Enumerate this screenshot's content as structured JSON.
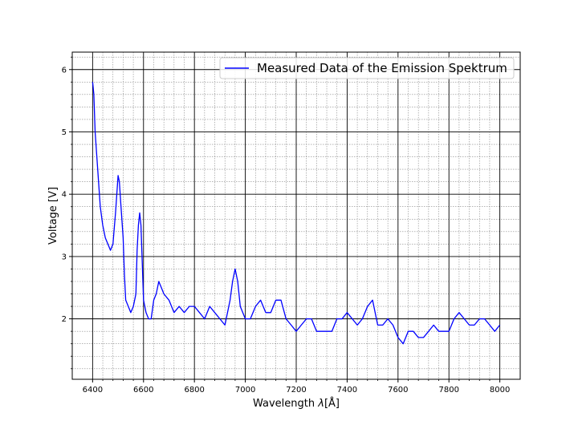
{
  "chart_data": {
    "type": "line",
    "title": "",
    "xlabel": "Wavelength $\\lambda$[Å]",
    "xlabel_prefix": "Wavelength ",
    "xlabel_symbol": "λ",
    "xlabel_unit": "[Å]",
    "ylabel": "Voltage [V]",
    "xlim": [
      6320,
      8080
    ],
    "ylim": [
      1.03,
      6.28
    ],
    "x_ticks": [
      6400,
      6600,
      6800,
      7000,
      7200,
      7400,
      7600,
      7800,
      8000
    ],
    "x_tick_labels": [
      "6400",
      "6600",
      "6800",
      "7000",
      "7200",
      "7400",
      "7600",
      "7800",
      "8000"
    ],
    "y_ticks": [
      2,
      3,
      4,
      5,
      6
    ],
    "y_tick_labels": [
      "2",
      "3",
      "4",
      "5",
      "6"
    ],
    "grid": true,
    "minor_grid": true,
    "legend_position": "top-right",
    "series": [
      {
        "name": "Measured Data of the Emission Spektrum",
        "color": "#0000ff",
        "x": [
          6400,
          6405,
          6410,
          6415,
          6420,
          6425,
          6430,
          6440,
          6450,
          6460,
          6470,
          6480,
          6490,
          6495,
          6500,
          6505,
          6510,
          6515,
          6520,
          6525,
          6530,
          6540,
          6550,
          6560,
          6570,
          6575,
          6580,
          6585,
          6590,
          6595,
          6600,
          6610,
          6620,
          6630,
          6640,
          6650,
          6660,
          6670,
          6680,
          6700,
          6720,
          6740,
          6760,
          6780,
          6800,
          6820,
          6840,
          6860,
          6880,
          6900,
          6920,
          6940,
          6950,
          6960,
          6970,
          6980,
          7000,
          7020,
          7040,
          7060,
          7080,
          7100,
          7120,
          7140,
          7160,
          7180,
          7200,
          7220,
          7240,
          7260,
          7280,
          7300,
          7320,
          7340,
          7360,
          7380,
          7400,
          7420,
          7440,
          7460,
          7480,
          7500,
          7520,
          7540,
          7560,
          7580,
          7600,
          7620,
          7640,
          7660,
          7680,
          7700,
          7720,
          7740,
          7760,
          7780,
          7800,
          7820,
          7840,
          7860,
          7880,
          7900,
          7920,
          7940,
          7960,
          7980,
          8000
        ],
        "y": [
          5.8,
          5.6,
          5.0,
          4.7,
          4.4,
          4.1,
          3.8,
          3.5,
          3.3,
          3.2,
          3.1,
          3.2,
          3.7,
          4.0,
          4.3,
          4.2,
          3.9,
          3.6,
          3.3,
          2.7,
          2.3,
          2.2,
          2.1,
          2.2,
          2.4,
          3.1,
          3.5,
          3.7,
          3.5,
          2.9,
          2.3,
          2.1,
          2.0,
          2.0,
          2.3,
          2.4,
          2.6,
          2.5,
          2.4,
          2.3,
          2.1,
          2.2,
          2.1,
          2.2,
          2.2,
          2.1,
          2.0,
          2.2,
          2.1,
          2.0,
          1.9,
          2.3,
          2.6,
          2.8,
          2.6,
          2.2,
          2.0,
          2.0,
          2.2,
          2.3,
          2.1,
          2.1,
          2.3,
          2.3,
          2.0,
          1.9,
          1.8,
          1.9,
          2.0,
          2.0,
          1.8,
          1.8,
          1.8,
          1.8,
          2.0,
          2.0,
          2.1,
          2.0,
          1.9,
          2.0,
          2.2,
          2.3,
          1.9,
          1.9,
          2.0,
          1.9,
          1.7,
          1.6,
          1.8,
          1.8,
          1.7,
          1.7,
          1.8,
          1.9,
          1.8,
          1.8,
          1.8,
          2.0,
          2.1,
          2.0,
          1.9,
          1.9,
          2.0,
          2.0,
          1.9,
          1.8,
          1.9
        ]
      }
    ]
  }
}
